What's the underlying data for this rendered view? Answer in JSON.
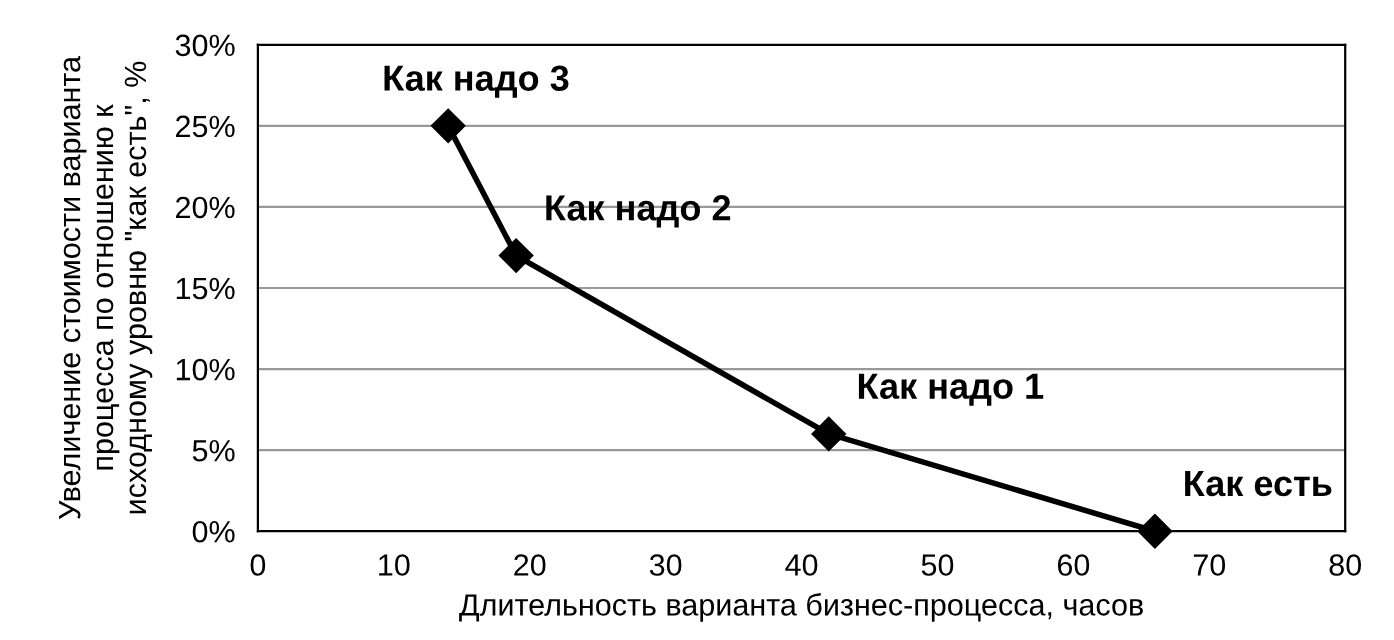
{
  "chart_data": {
    "type": "line",
    "xlabel": "Длительность варианта бизнес-процесса, часов",
    "ylabel": "Увеличение стоимости варианта\nпроцесса по отношению к\nисходному уровню \"как есть\", %",
    "x": [
      14,
      19,
      42,
      66
    ],
    "series": [
      {
        "color": "#000000",
        "values": [
          25,
          17,
          6,
          0
        ]
      }
    ],
    "marker": "diamond",
    "line_style": "solid",
    "grid": "y",
    "xlim": [
      0,
      80
    ],
    "xticks": [
      0,
      10,
      20,
      30,
      40,
      50,
      60,
      70,
      80
    ],
    "ylim": [
      0,
      30
    ],
    "yticks": [
      {
        "value": 0,
        "label": "0%"
      },
      {
        "value": 5,
        "label": "5%"
      },
      {
        "value": 10,
        "label": "10%"
      },
      {
        "value": 15,
        "label": "15%"
      },
      {
        "value": 20,
        "label": "20%"
      },
      {
        "value": 25,
        "label": "25%"
      },
      {
        "value": 30,
        "label": "30%"
      }
    ],
    "annotations": [
      {
        "text": "Как надо 3",
        "x": 14,
        "y": 25
      },
      {
        "text": "Как надо 2",
        "x": 19,
        "y": 17
      },
      {
        "text": "Как надо 1",
        "x": 42,
        "y": 6
      },
      {
        "text": "Как есть",
        "x": 66,
        "y": 0
      }
    ]
  }
}
